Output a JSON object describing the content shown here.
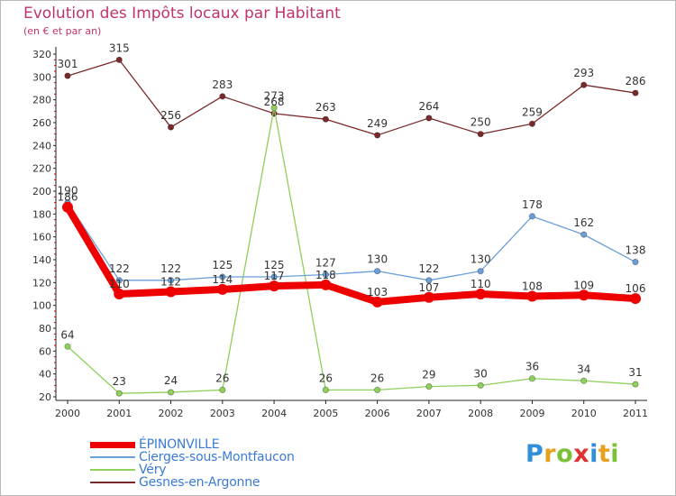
{
  "header": {
    "title": "Evolution des Impôts locaux par Habitant",
    "subtitle": "(en € et par an)"
  },
  "logo": {
    "text": "Proxiti",
    "letters": [
      {
        "char": "P",
        "color": "#2f8fd8"
      },
      {
        "char": "r",
        "color": "#e8a020"
      },
      {
        "char": "o",
        "color": "#7cc03a"
      },
      {
        "char": "x",
        "color": "#e03030"
      },
      {
        "char": "i",
        "color": "#2f8fd8"
      },
      {
        "char": "t",
        "color": "#e8a020"
      },
      {
        "char": "i",
        "color": "#7cc03a"
      }
    ]
  },
  "chart_data": {
    "type": "line",
    "title": "Evolution des Impôts locaux par Habitant",
    "subtitle": "(en € et par an)",
    "xlabel": "",
    "ylabel": "",
    "x": [
      "2000",
      "2001",
      "2002",
      "2003",
      "2004",
      "2005",
      "2006",
      "2007",
      "2008",
      "2009",
      "2010",
      "2011"
    ],
    "ylim": [
      20,
      320
    ],
    "yticks": [
      20,
      40,
      60,
      80,
      100,
      120,
      140,
      160,
      180,
      200,
      220,
      240,
      260,
      280,
      300,
      320
    ],
    "grid": false,
    "legend_position": "bottom-left",
    "series": [
      {
        "name": "ÉPINONVILLE",
        "color": "#ee0000",
        "values": [
          186,
          110,
          112,
          114,
          117,
          118,
          103,
          107,
          110,
          108,
          109,
          106
        ],
        "labels": [
          "186",
          "110",
          "112",
          "114",
          "117",
          "118",
          "103",
          "107",
          "110",
          "108",
          "109",
          "106"
        ]
      },
      {
        "name": "Cierges-sous-Montfaucon",
        "color": "#6a9fd8",
        "values": [
          190,
          122,
          122,
          125,
          125,
          127,
          130,
          122,
          130,
          178,
          162,
          138
        ],
        "labels": [
          "190",
          "122",
          "122",
          "125",
          "125",
          "127",
          "130",
          "122",
          "130",
          "178",
          "162",
          "138"
        ]
      },
      {
        "name": "Véry",
        "color": "#8ed05a",
        "values": [
          64,
          23,
          24,
          26,
          273,
          26,
          26,
          29,
          30,
          36,
          34,
          31
        ],
        "labels": [
          "64",
          "23",
          "24",
          "26",
          "273",
          "26",
          "26",
          "29",
          "30",
          "36",
          "34",
          "31"
        ]
      },
      {
        "name": "Gesnes-en-Argonne",
        "color": "#7a2a2a",
        "values": [
          301,
          315,
          256,
          283,
          268,
          263,
          249,
          264,
          250,
          259,
          293,
          286
        ],
        "labels": [
          "301",
          "315",
          "256",
          "283",
          "268",
          "263",
          "249",
          "264",
          "250",
          "259",
          "293",
          "286"
        ]
      }
    ]
  }
}
